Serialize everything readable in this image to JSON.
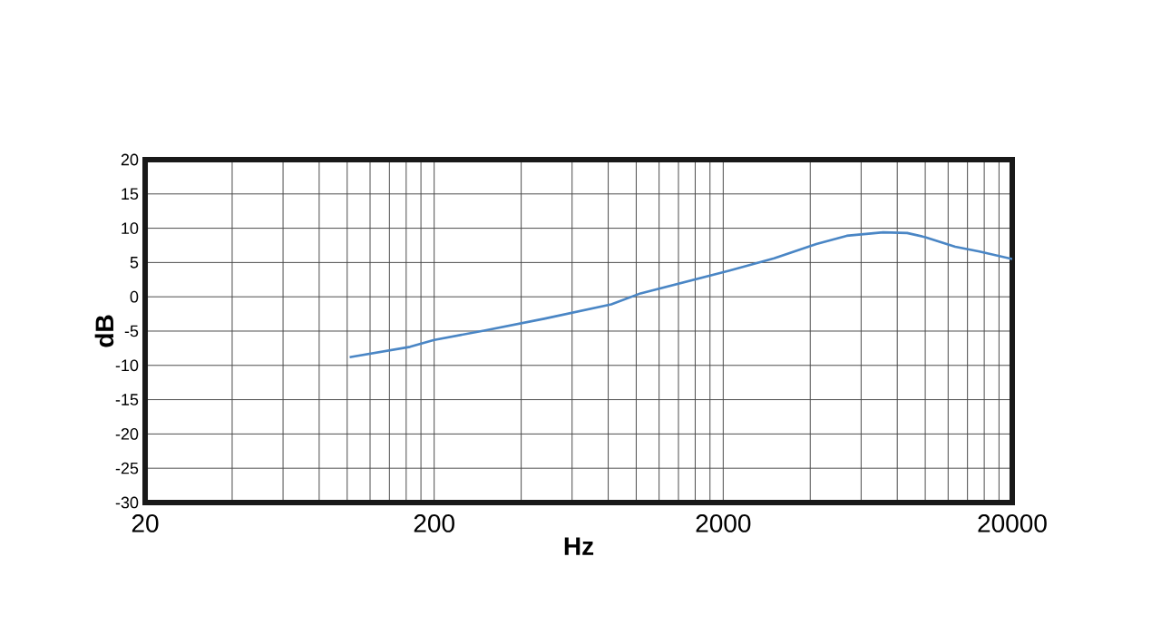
{
  "chart_data": {
    "type": "line",
    "xlabel": "Hz",
    "ylabel": "dB",
    "log": "x",
    "grid": true,
    "xlim": [
      20,
      20000
    ],
    "ylim": [
      -30,
      20
    ],
    "xticks": [
      20,
      {
        "value": 40,
        "label": null
      },
      {
        "value": 60,
        "label": null
      },
      {
        "value": 80,
        "label": null
      },
      {
        "value": 100,
        "label": null
      },
      {
        "value": 120,
        "label": null
      },
      {
        "value": 140,
        "label": null
      },
      {
        "value": 160,
        "label": null
      },
      {
        "value": 180,
        "label": null
      },
      200,
      {
        "value": 400,
        "label": null
      },
      {
        "value": 600,
        "label": null
      },
      {
        "value": 800,
        "label": null
      },
      {
        "value": 1000,
        "label": null
      },
      {
        "value": 1200,
        "label": null
      },
      {
        "value": 1400,
        "label": null
      },
      {
        "value": 1600,
        "label": null
      },
      {
        "value": 1800,
        "label": null
      },
      2000,
      {
        "value": 4000,
        "label": null
      },
      {
        "value": 6000,
        "label": null
      },
      {
        "value": 8000,
        "label": null
      },
      {
        "value": 10000,
        "label": null
      },
      {
        "value": 12000,
        "label": null
      },
      {
        "value": 14000,
        "label": null
      },
      {
        "value": 16000,
        "label": null
      },
      {
        "value": 18000,
        "label": null
      },
      20000
    ],
    "yticks": [
      -30,
      -25,
      -20,
      -15,
      -10,
      -5,
      0,
      5,
      10,
      15,
      20
    ],
    "series": [
      {
        "color": "#4a86c5",
        "x": [
          102,
          165,
          200,
          300,
          480,
          820,
          1035,
          2090,
          3000,
          4200,
          5350,
          7150,
          8660,
          10000,
          12700,
          15400,
          20000
        ],
        "values": [
          -8.8,
          -7.3,
          -6.3,
          -4.9,
          -3.2,
          -1.1,
          0.5,
          3.8,
          5.6,
          7.7,
          8.9,
          9.4,
          9.3,
          8.7,
          7.3,
          6.6,
          5.5
        ]
      }
    ]
  }
}
